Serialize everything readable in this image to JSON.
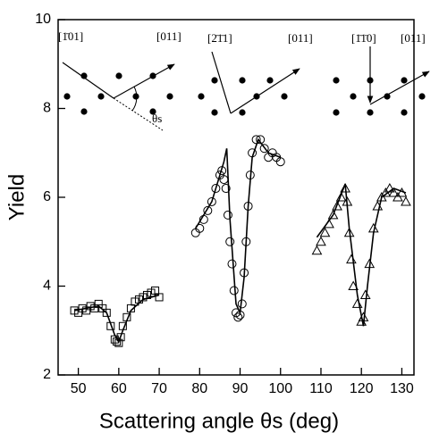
{
  "chart_data": {
    "type": "scatter",
    "xlabel": "Scattering angle θs (deg)",
    "ylabel": "Yield",
    "xlim": [
      45,
      133
    ],
    "ylim": [
      2,
      10
    ],
    "xticks": [
      50,
      60,
      70,
      80,
      90,
      100,
      110,
      120,
      130
    ],
    "yticks": [
      2,
      4,
      6,
      8,
      10
    ],
    "series": [
      {
        "marker": "square",
        "color": "#000000",
        "x": [
          49,
          50,
          51,
          52,
          53,
          54,
          55,
          56,
          57,
          58,
          59,
          59.5,
          60,
          60.5,
          61,
          62,
          63,
          64,
          65,
          66,
          67,
          68,
          69,
          70
        ],
        "values": [
          3.45,
          3.4,
          3.5,
          3.45,
          3.55,
          3.5,
          3.6,
          3.5,
          3.4,
          3.1,
          2.8,
          2.75,
          2.72,
          2.85,
          3.1,
          3.3,
          3.5,
          3.65,
          3.7,
          3.75,
          3.8,
          3.85,
          3.9,
          3.75
        ]
      },
      {
        "marker": "circle",
        "color": "#000000",
        "x": [
          79,
          80,
          81,
          82,
          83,
          84,
          85,
          85.5,
          86,
          86.5,
          87,
          87.5,
          88,
          88.5,
          89,
          89.5,
          90,
          90.5,
          91,
          91.5,
          92,
          92.5,
          93,
          94,
          95,
          96,
          97,
          98,
          99,
          100
        ],
        "values": [
          5.2,
          5.3,
          5.5,
          5.7,
          5.9,
          6.2,
          6.5,
          6.6,
          6.4,
          6.2,
          5.6,
          5.0,
          4.5,
          3.9,
          3.4,
          3.3,
          3.35,
          3.6,
          4.3,
          5.0,
          5.8,
          6.5,
          7.0,
          7.3,
          7.3,
          7.1,
          6.9,
          7.0,
          6.9,
          6.8
        ]
      },
      {
        "marker": "triangle",
        "color": "#000000",
        "x": [
          109,
          110,
          111,
          112,
          113,
          114,
          115,
          116,
          116.5,
          117,
          117.5,
          118,
          119,
          120,
          120.5,
          121,
          122,
          123,
          124,
          125,
          126,
          127,
          128,
          129,
          130,
          131
        ],
        "values": [
          4.8,
          5.0,
          5.2,
          5.4,
          5.6,
          5.8,
          6.0,
          6.2,
          5.9,
          5.2,
          4.6,
          4.0,
          3.6,
          3.2,
          3.3,
          3.8,
          4.5,
          5.3,
          5.8,
          6.0,
          6.1,
          6.2,
          6.1,
          6.0,
          6.1,
          5.9
        ]
      },
      {
        "marker": "line",
        "color": "#000000",
        "x": [
          49,
          55,
          57,
          59,
          60,
          61,
          63,
          66,
          70
        ],
        "values": [
          3.45,
          3.55,
          3.4,
          2.9,
          2.75,
          3.0,
          3.45,
          3.7,
          3.8
        ]
      },
      {
        "marker": "line",
        "color": "#000000",
        "x": [
          79,
          83,
          86,
          86.7,
          87.5,
          89,
          90,
          91,
          92,
          93,
          94.5,
          97,
          100
        ],
        "values": [
          5.3,
          5.9,
          6.8,
          7.1,
          5.5,
          3.6,
          3.4,
          4.2,
          5.8,
          6.9,
          7.3,
          7.0,
          6.9
        ]
      },
      {
        "marker": "line",
        "color": "#000000",
        "x": [
          109,
          113,
          116,
          117,
          119,
          120.5,
          121.5,
          123,
          125,
          128,
          131
        ],
        "values": [
          5.1,
          5.6,
          6.3,
          5.3,
          3.8,
          3.1,
          4.0,
          5.2,
          6.0,
          6.2,
          6.1
        ]
      }
    ],
    "annotations": [
      "[1̄01]",
      "[011]",
      "θs",
      "[2̄1̄1]",
      "[011]",
      "[1̄1̄0]",
      "[011]"
    ]
  }
}
